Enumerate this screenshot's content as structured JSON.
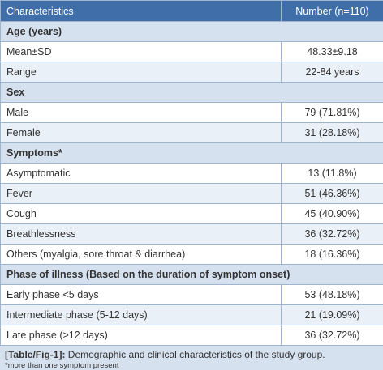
{
  "table": {
    "header": [
      "Characteristics",
      "Number (n=110)"
    ],
    "sections": [
      {
        "title": "Age (years)",
        "rows": [
          [
            "Mean±SD",
            "48.33±9.18"
          ],
          [
            "Range",
            "22-84 years"
          ]
        ]
      },
      {
        "title": "Sex",
        "rows": [
          [
            "Male",
            "79 (71.81%)"
          ],
          [
            "Female",
            "31 (28.18%)"
          ]
        ]
      },
      {
        "title": "Symptoms*",
        "rows": [
          [
            "Asymptomatic",
            "13 (11.8%)"
          ],
          [
            "Fever",
            "51 (46.36%)"
          ],
          [
            "Cough",
            "45 (40.90%)"
          ],
          [
            "Breathlessness",
            "36 (32.72%)"
          ],
          [
            "Others (myalgia, sore throat & diarrhea)",
            "18 (16.36%)"
          ]
        ]
      },
      {
        "title": "Phase of illness (Based on the duration of symptom onset)",
        "rows": [
          [
            "Early phase <5 days",
            "53 (48.18%)"
          ],
          [
            "Intermediate phase (5-12 days)",
            "21 (19.09%)"
          ],
          [
            "Late phase (>12 days)",
            "36 (32.72%)"
          ]
        ]
      }
    ]
  },
  "caption": {
    "label": "[Table/Fig-1]:",
    "text": "Demographic and clinical characteristics of the study group."
  },
  "footnote": "*more than one symptom present"
}
